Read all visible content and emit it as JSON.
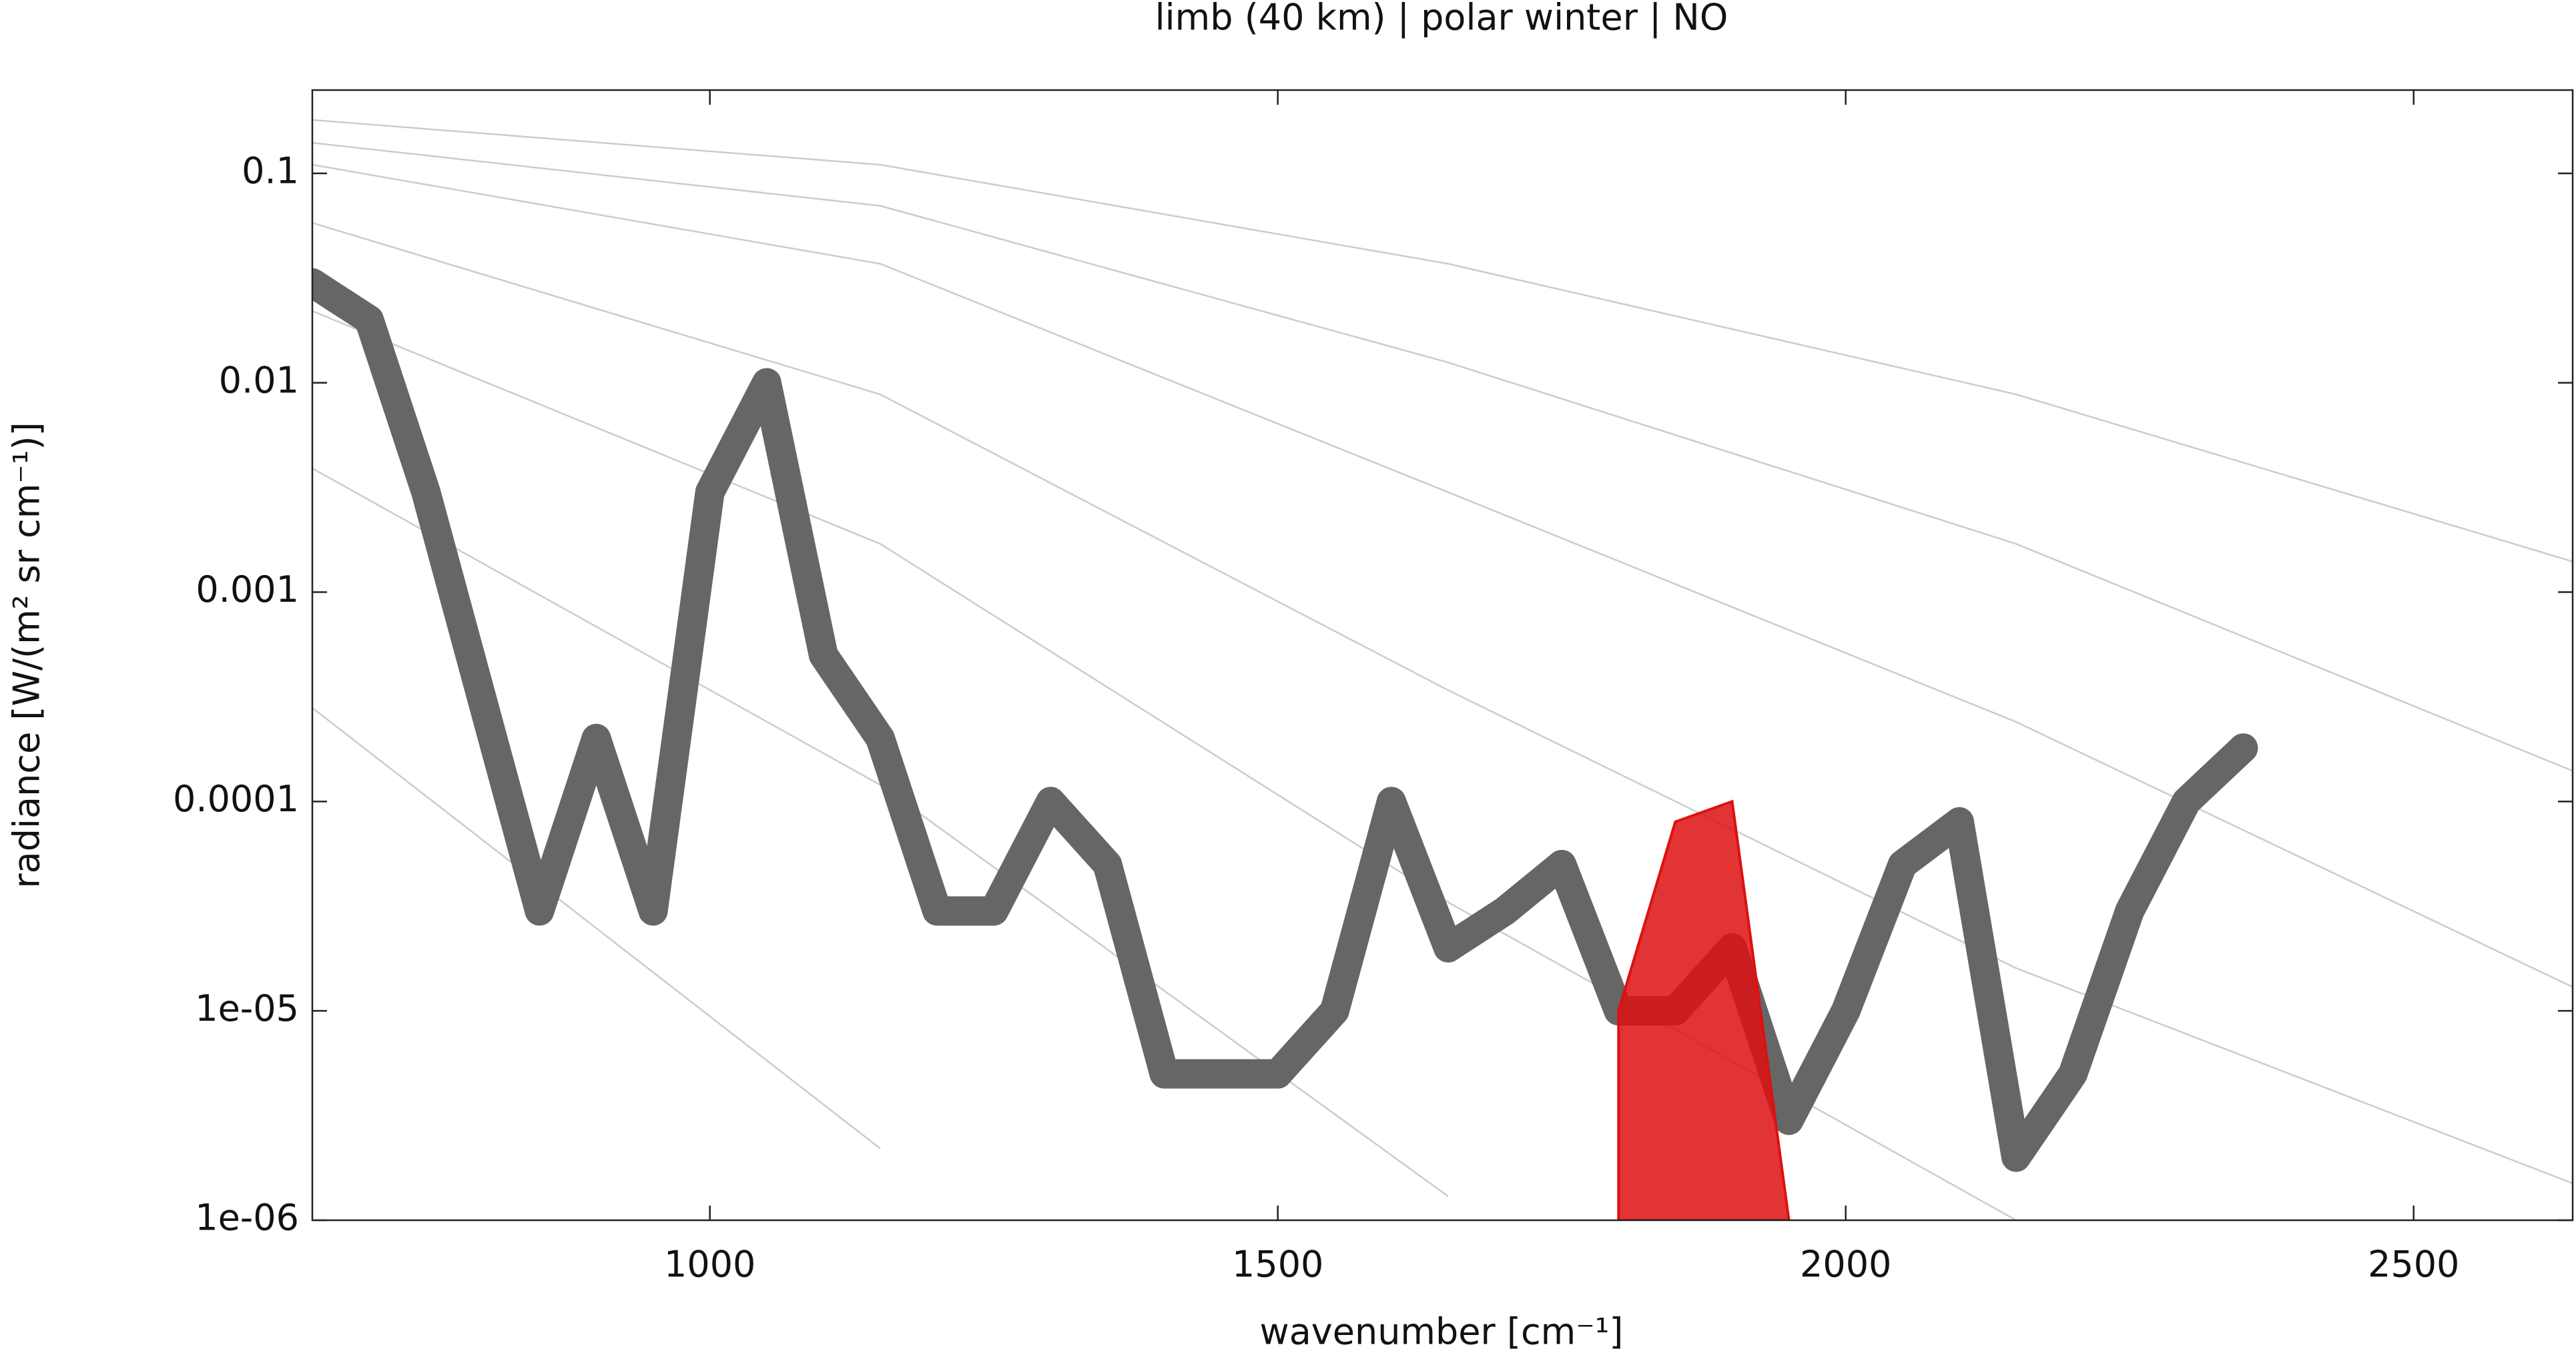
{
  "chart_data": {
    "type": "line",
    "title": "limb (40 km) | polar winter | NO",
    "xlabel": "wavenumber [cm⁻¹]",
    "ylabel": "radiance [W/(m² sr cm⁻¹)]",
    "xlim": [
      650,
      2640
    ],
    "xticks": [
      1000,
      1500,
      2000,
      2500
    ],
    "ylim": [
      1e-06,
      0.25
    ],
    "yticks": [
      0.1,
      0.01,
      0.001,
      0.0001,
      {
        "value": 1e-05,
        "label": "1e-05"
      },
      {
        "value": 1e-06,
        "label": "1e-06"
      }
    ],
    "log_y": true,
    "x": [
      650,
      700,
      750,
      800,
      850,
      900,
      950,
      1000,
      1050,
      1100,
      1150,
      1200,
      1250,
      1300,
      1350,
      1400,
      1450,
      1500,
      1550,
      1600,
      1650,
      1700,
      1750,
      1800,
      1850,
      1900,
      1950,
      2000,
      2050,
      2100,
      2150,
      2200,
      2250,
      2300,
      2350,
      2400
    ],
    "series": [
      {
        "color": "#cccccc",
        "style": "thin",
        "x": [
          650,
          1150,
          1650,
          2150,
          2640
        ],
        "values": [
          0.18,
          0.11,
          0.037,
          0.0088,
          0.0014
        ]
      },
      {
        "color": "#cccccc",
        "style": "thin",
        "x": [
          650,
          1150,
          1650,
          2150,
          2640
        ],
        "values": [
          0.14,
          0.07,
          0.0125,
          0.0017,
          0.00014
        ]
      },
      {
        "color": "#cccccc",
        "style": "thin",
        "x": [
          650,
          1150,
          1650,
          2150,
          2640
        ],
        "values": [
          0.11,
          0.037,
          0.003,
          0.00024,
          1.3e-05
        ]
      },
      {
        "color": "#cccccc",
        "style": "thin",
        "x": [
          650,
          1150,
          1650,
          2150,
          2640
        ],
        "values": [
          0.058,
          0.0088,
          0.00034,
          1.6e-05,
          1.5e-06
        ]
      },
      {
        "color": "#cccccc",
        "style": "thin",
        "x": [
          650,
          1150,
          1650,
          2150,
          2640
        ],
        "values": [
          0.022,
          0.0017,
          3.3e-05,
          1e-06,
          null
        ]
      },
      {
        "color": "#cccccc",
        "style": "thin",
        "x": [
          650,
          1150,
          1650,
          2150,
          2640
        ],
        "values": [
          0.0039,
          0.00012,
          1.3e-06,
          null,
          null
        ]
      },
      {
        "color": "#cccccc",
        "style": "thin",
        "x": [
          650,
          1150,
          1650,
          2150,
          2640
        ],
        "values": [
          0.00028,
          2.2e-06,
          null,
          null,
          null
        ]
      },
      {
        "color": "#666666",
        "style": "band",
        "values": [
          0.03,
          0.02,
          0.003,
          0.0003,
          3e-05,
          0.0002,
          3e-05,
          0.003,
          0.01,
          0.0005,
          0.0002,
          3e-05,
          3e-05,
          0.0001,
          5e-05,
          5e-06,
          5e-06,
          5e-06,
          1e-05,
          0.0001,
          2e-05,
          3e-05,
          5e-05,
          1e-05,
          1e-05,
          2e-05,
          3e-06,
          1e-05,
          5e-05,
          8e-05,
          2e-06,
          5e-06,
          3e-05,
          0.0001,
          0.00018,
          null
        ]
      },
      {
        "color": "#dd1111",
        "style": "area",
        "values": [
          null,
          null,
          null,
          null,
          null,
          null,
          null,
          null,
          null,
          null,
          null,
          null,
          null,
          null,
          null,
          null,
          null,
          null,
          null,
          null,
          null,
          null,
          null,
          1e-05,
          8e-05,
          0.0001,
          1e-06,
          null,
          null,
          null,
          null,
          null,
          null,
          null,
          null,
          null
        ]
      }
    ]
  }
}
